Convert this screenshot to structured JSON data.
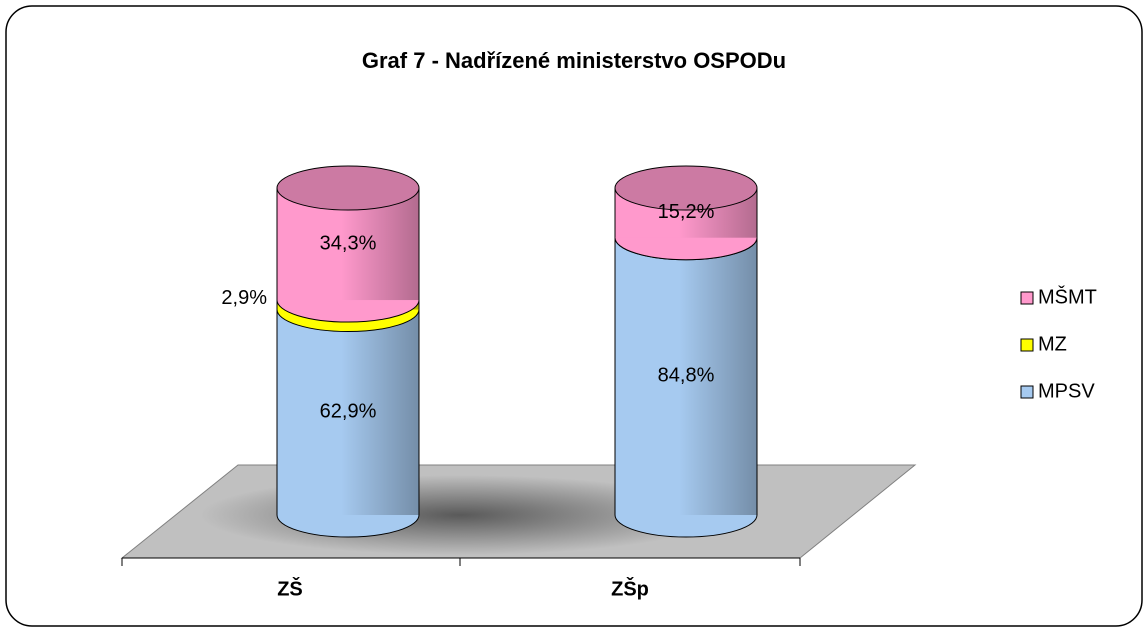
{
  "chart_data": {
    "type": "bar",
    "stacked": true,
    "title": "Graf 7 - Nadřízené ministerstvo OSPODu",
    "categories": [
      "ZŠ",
      "ZŠp"
    ],
    "series": [
      {
        "name": "MPSV",
        "color": "#a6caf0",
        "values": [
          62.9,
          84.8
        ],
        "value_labels": [
          "62,9%",
          "84,8%"
        ]
      },
      {
        "name": "MZ",
        "color": "#ffff00",
        "values": [
          2.9,
          0
        ],
        "value_labels": [
          "2,9%",
          null
        ]
      },
      {
        "name": "MŠMT",
        "color": "#ff99cc",
        "values": [
          34.3,
          15.2
        ],
        "value_labels": [
          "34,3%",
          "15,2%"
        ]
      }
    ],
    "legend": "right"
  }
}
